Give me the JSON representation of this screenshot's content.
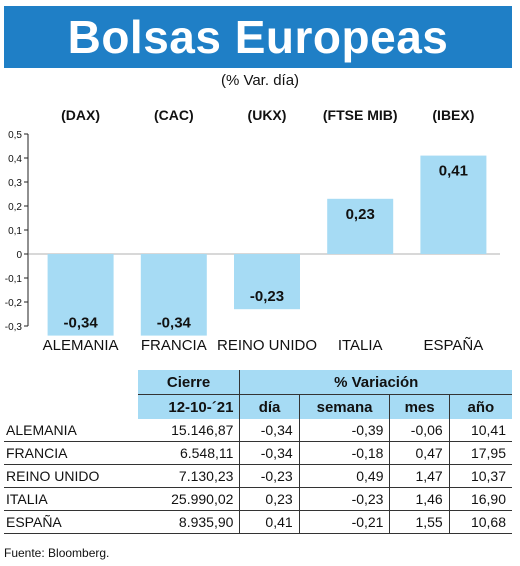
{
  "header": {
    "title": "Bolsas Europeas",
    "subtitle": "(% Var. día)"
  },
  "colors": {
    "banner": "#1f7fc6",
    "bar": "#a6dbf4",
    "table_header": "#a6dbf4"
  },
  "chart_data": {
    "type": "bar",
    "indices": [
      "(DAX)",
      "(CAC)",
      "(UKX)",
      "(FTSE MIB)",
      "(IBEX)"
    ],
    "categories": [
      "ALEMANIA",
      "FRANCIA",
      "REINO UNIDO",
      "ITALIA",
      "ESPAÑA"
    ],
    "values": [
      -0.34,
      -0.34,
      -0.23,
      0.23,
      0.41
    ],
    "value_labels": [
      "-0,34",
      "-0,34",
      "-0,23",
      "0,23",
      "0,41"
    ],
    "ylim": [
      -0.3,
      0.5
    ],
    "yticks": [
      0.5,
      0.4,
      0.3,
      0.2,
      0.1,
      0,
      -0.1,
      -0.2,
      -0.3
    ],
    "ytick_labels": [
      "0,5",
      "0,4",
      "0,3",
      "0,2",
      "0,1",
      "0",
      "-0,1",
      "-0,2",
      "-0,3"
    ],
    "grid": false
  },
  "table": {
    "group_headers": [
      "Cierre",
      "% Variación"
    ],
    "columns": [
      "12-10-´21",
      "día",
      "semana",
      "mes",
      "año"
    ],
    "rows": [
      {
        "name": "ALEMANIA",
        "cierre": "15.146,87",
        "dia": "-0,34",
        "semana": "-0,39",
        "mes": "-0,06",
        "ano": "10,41"
      },
      {
        "name": "FRANCIA",
        "cierre": "6.548,11",
        "dia": "-0,34",
        "semana": "-0,18",
        "mes": "0,47",
        "ano": "17,95"
      },
      {
        "name": "REINO UNIDO",
        "cierre": "7.130,23",
        "dia": "-0,23",
        "semana": "0,49",
        "mes": "1,47",
        "ano": "10,37"
      },
      {
        "name": "ITALIA",
        "cierre": "25.990,02",
        "dia": "0,23",
        "semana": "-0,23",
        "mes": "1,46",
        "ano": "16,90"
      },
      {
        "name": "ESPAÑA",
        "cierre": "8.935,90",
        "dia": "0,41",
        "semana": "-0,21",
        "mes": "1,55",
        "ano": "10,68"
      }
    ]
  },
  "source": "Fuente: Bloomberg."
}
